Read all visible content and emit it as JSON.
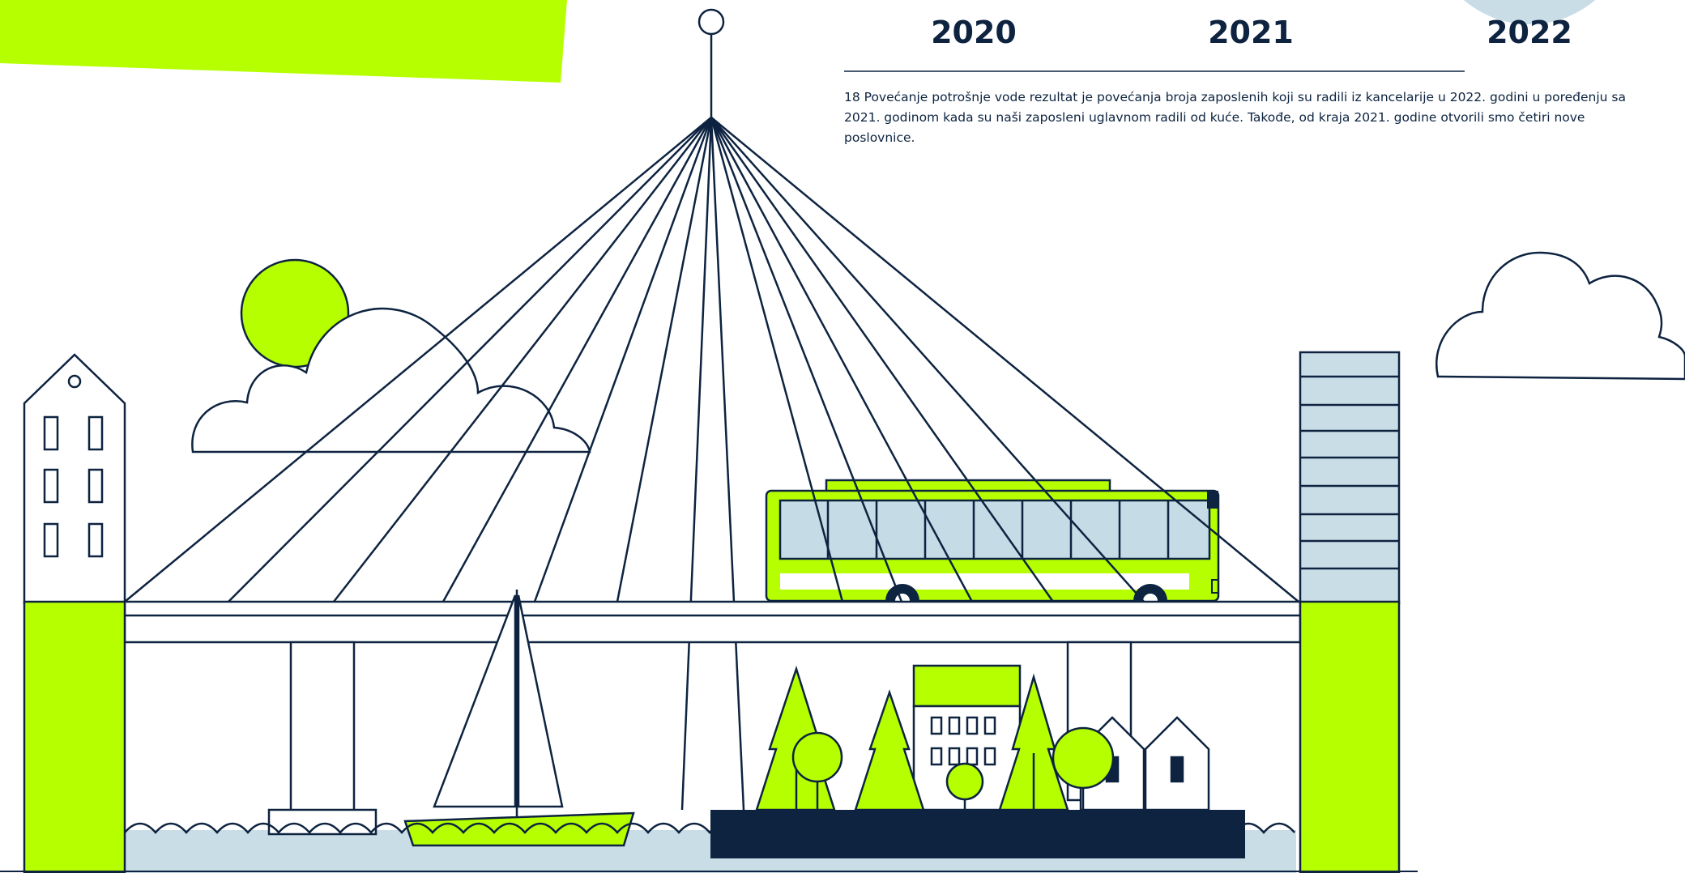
{
  "years": [
    "2020",
    "2021",
    "2022"
  ],
  "footnote": "18  Povećanje potrošnje vode rezultat je povećanja broja zaposlenih koji su radili iz kancelarije u 2022. godini u poređenju sa 2021. godinom kada su naši zaposleni uglavnom radili od kuće. Takođe, od kraja 2021. godine otvorili smo četiri nove poslovnice.",
  "colors": {
    "accent": "#b6ff00",
    "ink": "#0d2340",
    "water": "#c9dde7",
    "window": "#c5dbe5"
  }
}
